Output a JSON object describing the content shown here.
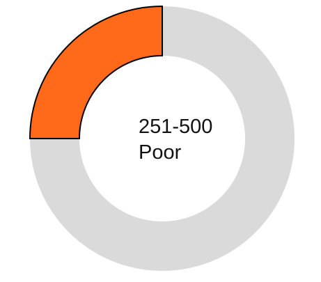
{
  "chart_data": {
    "type": "pie",
    "subtype": "donut-gauge",
    "segments": [
      {
        "name": "filled",
        "value": 1,
        "color": "#ff6a1a",
        "stroke": "#000000"
      },
      {
        "name": "remaining",
        "value": 3,
        "color": "#dadada"
      }
    ],
    "total": 4,
    "start": "top",
    "direction": "counter-clockwise",
    "range_label": "251-500",
    "rating_label": "Poor"
  }
}
